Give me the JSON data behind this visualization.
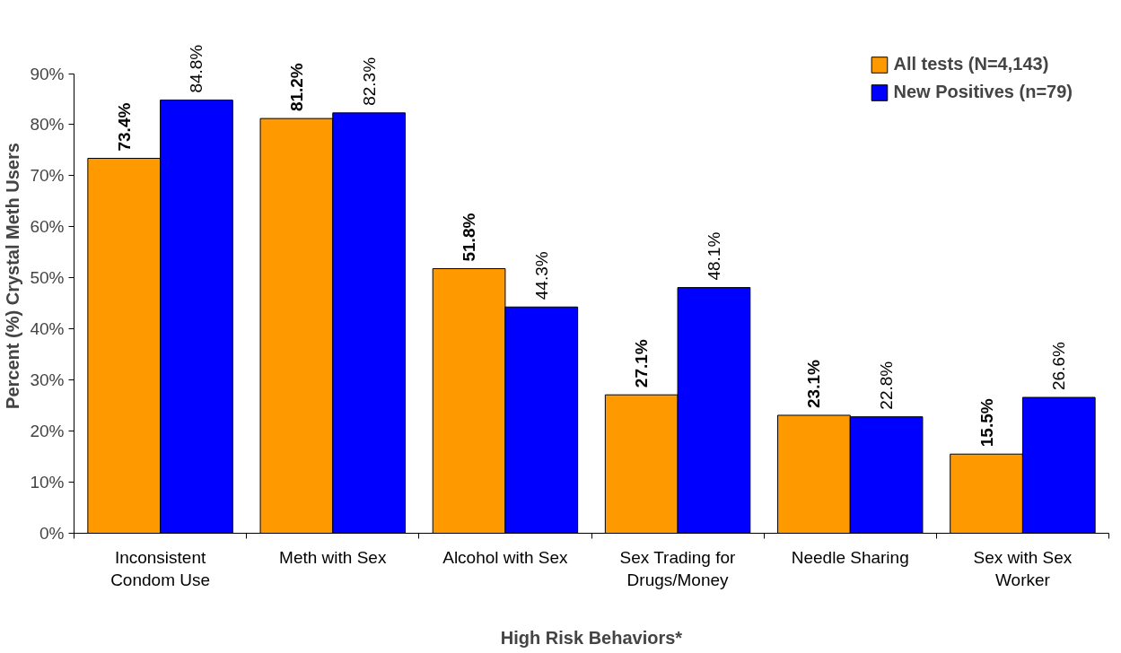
{
  "chart_data": {
    "type": "bar",
    "xlabel": "High Risk Behaviors*",
    "ylabel": "Percent (%) Crystal Meth Users",
    "categories": [
      "Inconsistent\nCondom Use",
      "Meth with Sex",
      "Alcohol with Sex",
      "Sex Trading for\nDrugs/Money",
      "Needle Sharing",
      "Sex with Sex\nWorker"
    ],
    "series": [
      {
        "name": "All tests (N=4,143)",
        "color": "#ff9900",
        "values": [
          73.4,
          81.2,
          51.8,
          27.1,
          23.1,
          15.5
        ],
        "value_labels": [
          "73.4%",
          "81.2%",
          "51.8%",
          "27.1%",
          "23.1%",
          "15.5%"
        ]
      },
      {
        "name": "New Positives (n=79)",
        "color": "#0000ff",
        "values": [
          84.8,
          82.3,
          44.3,
          48.1,
          22.8,
          26.6
        ],
        "value_labels": [
          "84.8%",
          "82.3%",
          "44.3%",
          "48.1%",
          "22.8%",
          "26.6%"
        ]
      }
    ],
    "ylim": [
      0,
      90
    ],
    "yticks": [
      {
        "value": 0,
        "label": "0%"
      },
      {
        "value": 10,
        "label": "10%"
      },
      {
        "value": 20,
        "label": "20%"
      },
      {
        "value": 30,
        "label": "30%"
      },
      {
        "value": 40,
        "label": "40%"
      },
      {
        "value": 50,
        "label": "50%"
      },
      {
        "value": 60,
        "label": "60%"
      },
      {
        "value": 70,
        "label": "70%"
      },
      {
        "value": 80,
        "label": "80%"
      },
      {
        "value": 90,
        "label": "90%"
      }
    ],
    "grid": false,
    "legend": "top right"
  }
}
